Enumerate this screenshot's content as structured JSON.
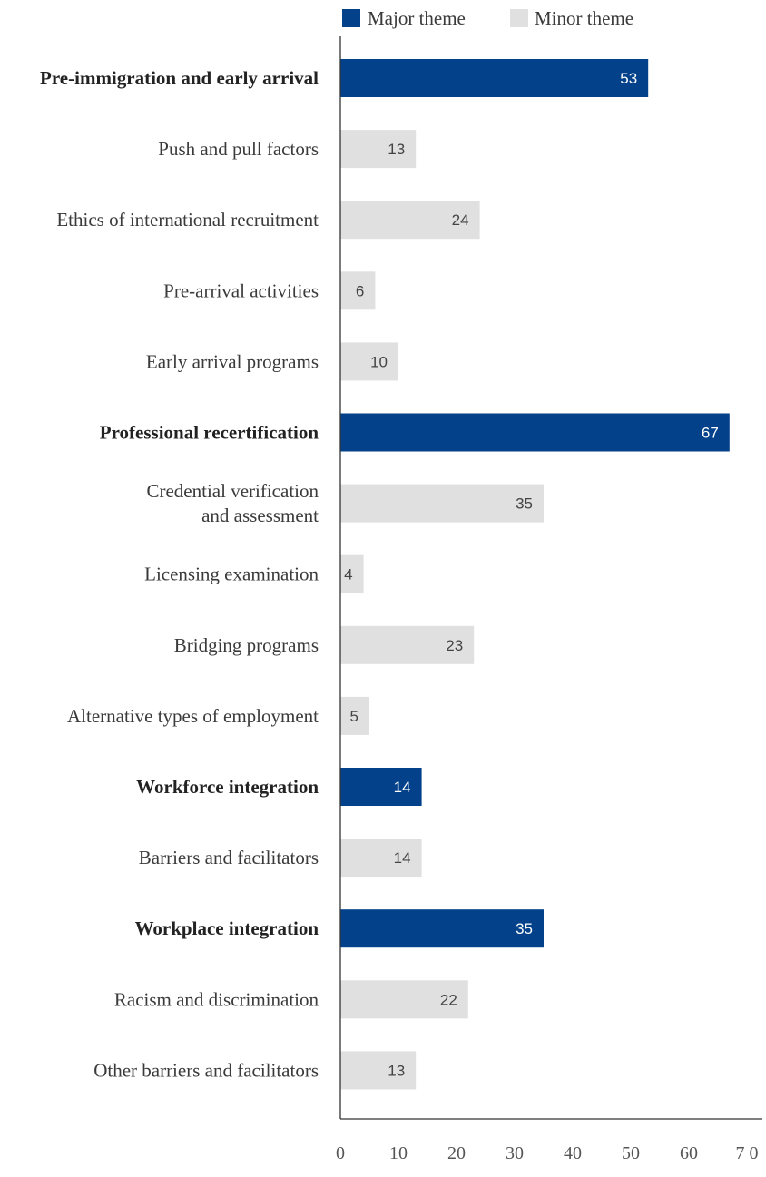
{
  "chart_data": {
    "type": "bar",
    "orientation": "horizontal",
    "legend": {
      "placement": "top",
      "items": [
        {
          "key": "major",
          "label": "Major theme",
          "color": "#03418a"
        },
        {
          "key": "minor",
          "label": "Minor theme",
          "color": "#e0e0e0"
        }
      ]
    },
    "categories": [
      {
        "label": [
          "Pre-immigration and early arrival"
        ],
        "value": 53,
        "type": "major"
      },
      {
        "label": [
          "Push and pull factors"
        ],
        "value": 13,
        "type": "minor"
      },
      {
        "label": [
          "Ethics of international recruitment"
        ],
        "value": 24,
        "type": "minor"
      },
      {
        "label": [
          "Pre-arrival activities"
        ],
        "value": 6,
        "type": "minor"
      },
      {
        "label": [
          "Early arrival programs"
        ],
        "value": 10,
        "type": "minor"
      },
      {
        "label": [
          "Professional recertification"
        ],
        "value": 67,
        "type": "major"
      },
      {
        "label": [
          "Credential verification",
          "and assessment"
        ],
        "value": 35,
        "type": "minor"
      },
      {
        "label": [
          "Licensing examination"
        ],
        "value": 4,
        "type": "minor"
      },
      {
        "label": [
          "Bridging programs"
        ],
        "value": 23,
        "type": "minor"
      },
      {
        "label": [
          "Alternative types of employment"
        ],
        "value": 5,
        "type": "minor"
      },
      {
        "label": [
          "Workforce integration"
        ],
        "value": 14,
        "type": "major"
      },
      {
        "label": [
          "Barriers and facilitators"
        ],
        "value": 14,
        "type": "minor"
      },
      {
        "label": [
          "Workplace integration"
        ],
        "value": 35,
        "type": "major"
      },
      {
        "label": [
          "Racism and discrimination"
        ],
        "value": 22,
        "type": "minor"
      },
      {
        "label": [
          "Other barriers and facilitators"
        ],
        "value": 13,
        "type": "minor"
      }
    ],
    "xlim": [
      0,
      70
    ],
    "xticks": [
      "0",
      "10",
      "20",
      "30",
      "40",
      "50",
      "60",
      "7 0"
    ],
    "grid": false,
    "value_label_colors": {
      "major": "#ffffff",
      "minor": "#444444"
    }
  }
}
